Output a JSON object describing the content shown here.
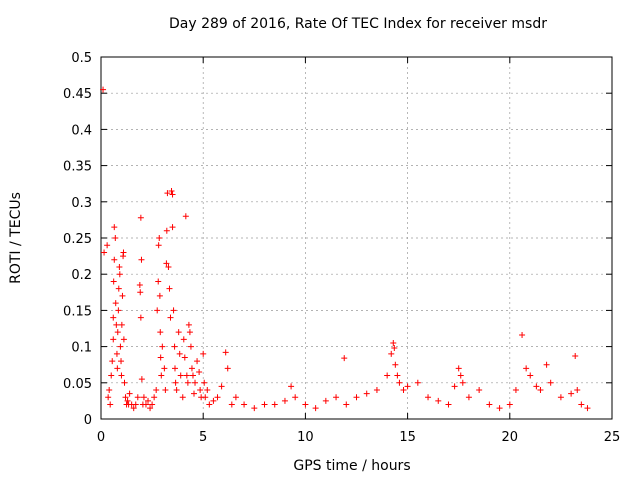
{
  "chart_data": {
    "type": "scatter",
    "title": "Day 289 of 2016, Rate Of TEC Index for receiver msdr",
    "xlabel": "GPS time / hours",
    "ylabel": "ROTI / TECUs",
    "xlim": [
      0,
      25
    ],
    "ylim": [
      0,
      0.5
    ],
    "xticks": [
      0,
      5,
      10,
      15,
      20,
      25
    ],
    "xtick_labels": [
      "0",
      "5",
      "10",
      "15",
      "20",
      "25"
    ],
    "yticks": [
      0,
      0.05,
      0.1,
      0.15,
      0.2,
      0.25,
      0.3,
      0.35,
      0.4,
      0.45,
      0.5
    ],
    "ytick_labels": [
      "0",
      "0.05",
      "0.1",
      "0.15",
      "0.2",
      "0.25",
      "0.3",
      "0.35",
      "0.4",
      "0.45",
      "0.5"
    ],
    "grid": true,
    "marker": "+",
    "color": "#ff0000",
    "series": [
      {
        "name": "ROTI",
        "points": [
          [
            0.1,
            0.455
          ],
          [
            0.15,
            0.23
          ],
          [
            0.3,
            0.24
          ],
          [
            0.35,
            0.03
          ],
          [
            0.4,
            0.04
          ],
          [
            0.45,
            0.02
          ],
          [
            0.5,
            0.06
          ],
          [
            0.55,
            0.08
          ],
          [
            0.6,
            0.11
          ],
          [
            0.6,
            0.14
          ],
          [
            0.62,
            0.19
          ],
          [
            0.65,
            0.22
          ],
          [
            0.65,
            0.265
          ],
          [
            0.7,
            0.25
          ],
          [
            0.72,
            0.16
          ],
          [
            0.75,
            0.13
          ],
          [
            0.78,
            0.09
          ],
          [
            0.8,
            0.07
          ],
          [
            0.82,
            0.12
          ],
          [
            0.85,
            0.15
          ],
          [
            0.87,
            0.18
          ],
          [
            0.9,
            0.21
          ],
          [
            0.92,
            0.2
          ],
          [
            0.95,
            0.1
          ],
          [
            0.98,
            0.08
          ],
          [
            1.0,
            0.06
          ],
          [
            1.02,
            0.13
          ],
          [
            1.05,
            0.17
          ],
          [
            1.08,
            0.225
          ],
          [
            1.1,
            0.23
          ],
          [
            1.12,
            0.11
          ],
          [
            1.15,
            0.05
          ],
          [
            1.2,
            0.03
          ],
          [
            1.25,
            0.02
          ],
          [
            1.3,
            0.025
          ],
          [
            1.35,
            0.02
          ],
          [
            1.4,
            0.035
          ],
          [
            1.5,
            0.02
          ],
          [
            1.6,
            0.015
          ],
          [
            1.7,
            0.02
          ],
          [
            1.8,
            0.03
          ],
          [
            1.9,
            0.185
          ],
          [
            1.92,
            0.175
          ],
          [
            1.95,
            0.14
          ],
          [
            1.95,
            0.278
          ],
          [
            1.98,
            0.22
          ],
          [
            2.0,
            0.055
          ],
          [
            2.05,
            0.02
          ],
          [
            2.1,
            0.03
          ],
          [
            2.2,
            0.02
          ],
          [
            2.3,
            0.025
          ],
          [
            2.4,
            0.015
          ],
          [
            2.5,
            0.02
          ],
          [
            2.6,
            0.03
          ],
          [
            2.7,
            0.04
          ],
          [
            2.75,
            0.15
          ],
          [
            2.8,
            0.19
          ],
          [
            2.82,
            0.24
          ],
          [
            2.85,
            0.25
          ],
          [
            2.88,
            0.17
          ],
          [
            2.9,
            0.12
          ],
          [
            2.92,
            0.085
          ],
          [
            2.95,
            0.06
          ],
          [
            3.0,
            0.1
          ],
          [
            3.1,
            0.07
          ],
          [
            3.15,
            0.04
          ],
          [
            3.2,
            0.215
          ],
          [
            3.22,
            0.26
          ],
          [
            3.25,
            0.312
          ],
          [
            3.3,
            0.21
          ],
          [
            3.35,
            0.18
          ],
          [
            3.4,
            0.14
          ],
          [
            3.45,
            0.315
          ],
          [
            3.5,
            0.265
          ],
          [
            3.5,
            0.31
          ],
          [
            3.55,
            0.15
          ],
          [
            3.6,
            0.1
          ],
          [
            3.62,
            0.07
          ],
          [
            3.65,
            0.05
          ],
          [
            3.7,
            0.04
          ],
          [
            3.8,
            0.12
          ],
          [
            3.85,
            0.09
          ],
          [
            3.9,
            0.06
          ],
          [
            4.0,
            0.03
          ],
          [
            4.05,
            0.11
          ],
          [
            4.1,
            0.085
          ],
          [
            4.15,
            0.28
          ],
          [
            4.2,
            0.06
          ],
          [
            4.25,
            0.05
          ],
          [
            4.3,
            0.13
          ],
          [
            4.35,
            0.12
          ],
          [
            4.4,
            0.1
          ],
          [
            4.45,
            0.07
          ],
          [
            4.5,
            0.06
          ],
          [
            4.55,
            0.035
          ],
          [
            4.6,
            0.05
          ],
          [
            4.7,
            0.08
          ],
          [
            4.8,
            0.065
          ],
          [
            4.85,
            0.04
          ],
          [
            4.9,
            0.03
          ],
          [
            5.0,
            0.09
          ],
          [
            5.05,
            0.05
          ],
          [
            5.1,
            0.03
          ],
          [
            5.2,
            0.04
          ],
          [
            5.3,
            0.02
          ],
          [
            5.5,
            0.025
          ],
          [
            5.7,
            0.03
          ],
          [
            5.9,
            0.045
          ],
          [
            6.1,
            0.092
          ],
          [
            6.2,
            0.07
          ],
          [
            6.4,
            0.02
          ],
          [
            6.6,
            0.03
          ],
          [
            7.0,
            0.02
          ],
          [
            7.5,
            0.015
          ],
          [
            8.0,
            0.02
          ],
          [
            8.5,
            0.02
          ],
          [
            9.0,
            0.025
          ],
          [
            9.3,
            0.045
          ],
          [
            9.5,
            0.03
          ],
          [
            10.0,
            0.02
          ],
          [
            10.5,
            0.015
          ],
          [
            11.0,
            0.025
          ],
          [
            11.5,
            0.03
          ],
          [
            11.9,
            0.084
          ],
          [
            12.0,
            0.02
          ],
          [
            12.5,
            0.03
          ],
          [
            13.0,
            0.035
          ],
          [
            13.5,
            0.04
          ],
          [
            14.0,
            0.06
          ],
          [
            14.2,
            0.09
          ],
          [
            14.3,
            0.105
          ],
          [
            14.35,
            0.098
          ],
          [
            14.4,
            0.075
          ],
          [
            14.5,
            0.06
          ],
          [
            14.6,
            0.05
          ],
          [
            14.8,
            0.04
          ],
          [
            15.0,
            0.045
          ],
          [
            15.5,
            0.05
          ],
          [
            16.0,
            0.03
          ],
          [
            16.5,
            0.025
          ],
          [
            17.0,
            0.02
          ],
          [
            17.3,
            0.045
          ],
          [
            17.5,
            0.07
          ],
          [
            17.6,
            0.06
          ],
          [
            17.7,
            0.05
          ],
          [
            18.0,
            0.03
          ],
          [
            18.5,
            0.04
          ],
          [
            19.0,
            0.02
          ],
          [
            19.5,
            0.015
          ],
          [
            20.0,
            0.02
          ],
          [
            20.3,
            0.04
          ],
          [
            20.6,
            0.116
          ],
          [
            20.8,
            0.07
          ],
          [
            21.0,
            0.06
          ],
          [
            21.3,
            0.045
          ],
          [
            21.5,
            0.04
          ],
          [
            21.8,
            0.075
          ],
          [
            22.0,
            0.05
          ],
          [
            22.5,
            0.03
          ],
          [
            23.0,
            0.035
          ],
          [
            23.2,
            0.087
          ],
          [
            23.3,
            0.04
          ],
          [
            23.5,
            0.02
          ],
          [
            23.8,
            0.015
          ]
        ]
      }
    ]
  }
}
